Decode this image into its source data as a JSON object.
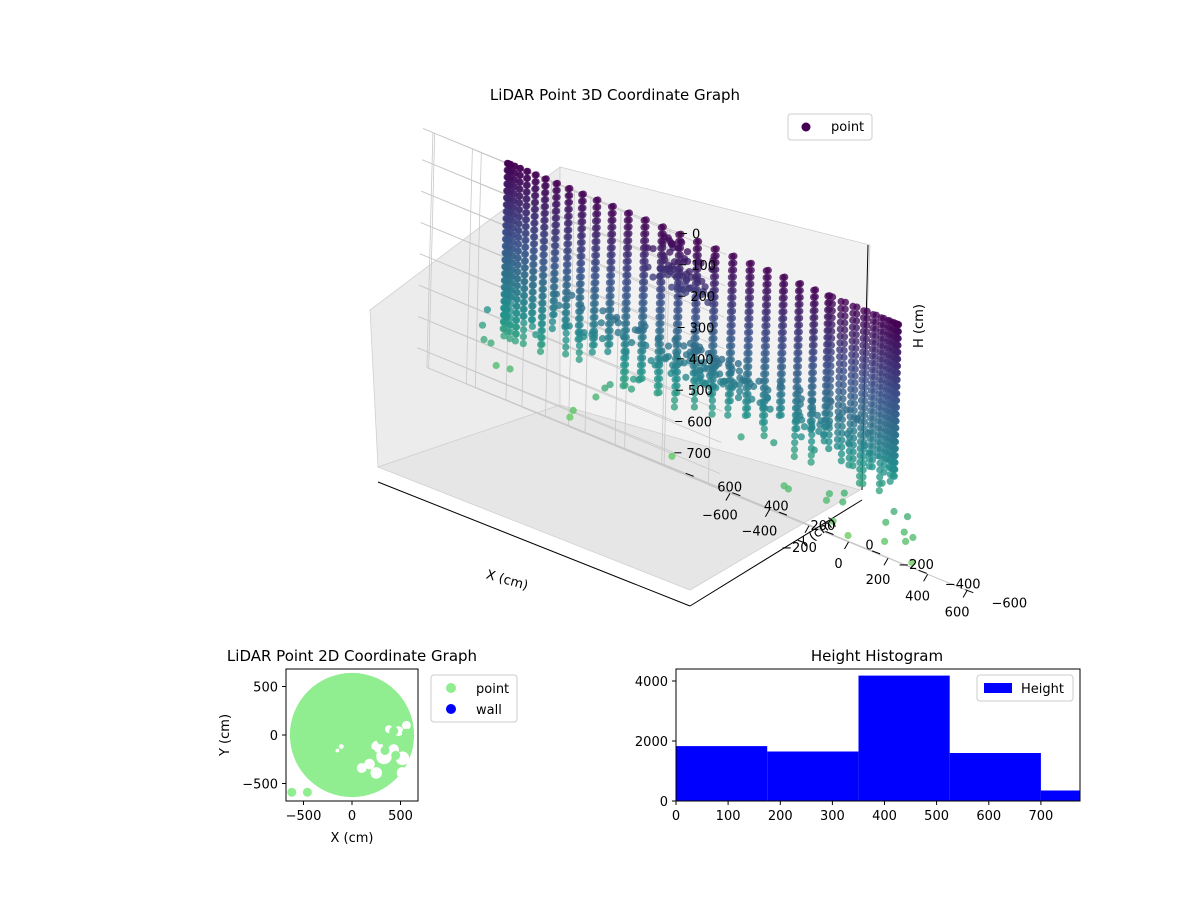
{
  "chart_data": [
    {
      "id": "lidar3d",
      "type": "scatter",
      "title": "LiDAR Point 3D Coordinate Graph",
      "xlabel": "X (cm)",
      "ylabel": "Y (cm)",
      "zlabel": "H (cm)",
      "xticks": [
        "−600",
        "−400",
        "−200",
        "0",
        "200",
        "400",
        "600"
      ],
      "yticks": [
        "−600",
        "−400",
        "−200",
        "0",
        "200",
        "400",
        "600"
      ],
      "zticks": [
        "0",
        "100",
        "200",
        "300",
        "400",
        "500",
        "600",
        "700"
      ],
      "xlim": [
        -650,
        650
      ],
      "ylim": [
        -650,
        650
      ],
      "zlim": [
        0,
        750
      ],
      "z_axis_inverted": true,
      "legend": {
        "label": "point",
        "placement": "top-right",
        "color": "#440154"
      },
      "colormap": "viridis",
      "wall_radius": 640,
      "wall_height": [
        0,
        530
      ],
      "grid": true
    },
    {
      "id": "lidar2d",
      "type": "scatter",
      "title": "LiDAR Point 2D Coordinate Graph",
      "xlabel": "X (cm)",
      "ylabel": "Y (cm)",
      "xticks": [
        "−500",
        "0",
        "500"
      ],
      "yticks": [
        "−500",
        "0",
        "500"
      ],
      "xlim": [
        -680,
        680
      ],
      "ylim": [
        -680,
        680
      ],
      "series": [
        {
          "name": "point",
          "color": "#90ee90"
        },
        {
          "name": "wall",
          "color": "#0000ff"
        }
      ],
      "legend_placement": "outside right",
      "grid": false
    },
    {
      "id": "histogram",
      "type": "bar",
      "title": "Height Histogram",
      "xlabel": "",
      "ylabel": "",
      "bins": [
        {
          "x0": 0,
          "x1": 175,
          "count": 1830
        },
        {
          "x0": 175,
          "x1": 350,
          "count": 1650
        },
        {
          "x0": 350,
          "x1": 525,
          "count": 4180
        },
        {
          "x0": 525,
          "x1": 700,
          "count": 1600
        },
        {
          "x0": 700,
          "x1": 775,
          "count": 350
        }
      ],
      "xlim": [
        0,
        775
      ],
      "ylim": [
        0,
        4400
      ],
      "xticks": [
        "0",
        "100",
        "200",
        "300",
        "400",
        "500",
        "600",
        "700"
      ],
      "yticks": [
        "0",
        "2000",
        "4000"
      ],
      "legend": {
        "label": "Height",
        "placement": "top-right"
      },
      "color": "#0000ff",
      "grid": false
    }
  ]
}
